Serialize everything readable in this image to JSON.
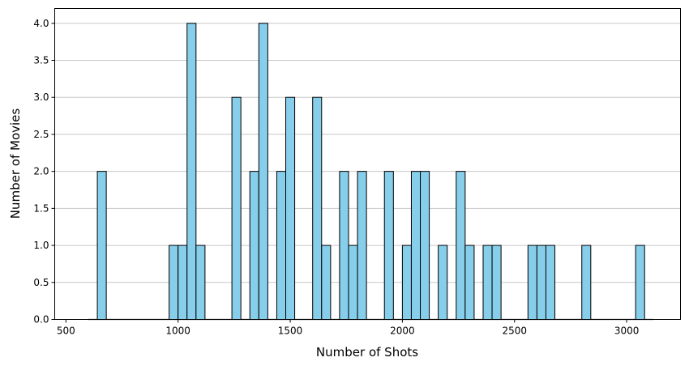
{
  "chart_data": {
    "type": "bar",
    "title": "",
    "xlabel": "Number of Shots",
    "ylabel": "Number of Movies",
    "xlim": [
      450,
      3240
    ],
    "ylim": [
      0,
      4.2
    ],
    "bin_width": 40,
    "bar_color": "#87ceeb",
    "edge_color": "#000000",
    "grid": "y-axis only",
    "x_ticks": [
      500,
      1000,
      1500,
      2000,
      2500,
      3000
    ],
    "x_tick_labels": [
      "500",
      "1000",
      "1500",
      "2000",
      "2500",
      "3000"
    ],
    "y_ticks": [
      0.0,
      0.5,
      1.0,
      1.5,
      2.0,
      2.5,
      3.0,
      3.5,
      4.0
    ],
    "y_tick_labels": [
      "0.0",
      "0.5",
      "1.0",
      "1.5",
      "2.0",
      "2.5",
      "3.0",
      "3.5",
      "4.0"
    ],
    "bins": [
      {
        "x": 620,
        "count": 0
      },
      {
        "x": 660,
        "count": 2
      },
      {
        "x": 700,
        "count": 0
      },
      {
        "x": 740,
        "count": 0
      },
      {
        "x": 780,
        "count": 0
      },
      {
        "x": 820,
        "count": 0
      },
      {
        "x": 860,
        "count": 0
      },
      {
        "x": 900,
        "count": 0
      },
      {
        "x": 940,
        "count": 0
      },
      {
        "x": 980,
        "count": 1
      },
      {
        "x": 1020,
        "count": 1
      },
      {
        "x": 1060,
        "count": 4
      },
      {
        "x": 1100,
        "count": 1
      },
      {
        "x": 1140,
        "count": 0
      },
      {
        "x": 1180,
        "count": 0
      },
      {
        "x": 1220,
        "count": 0
      },
      {
        "x": 1260,
        "count": 3
      },
      {
        "x": 1300,
        "count": 0
      },
      {
        "x": 1340,
        "count": 2
      },
      {
        "x": 1380,
        "count": 4
      },
      {
        "x": 1420,
        "count": 0
      },
      {
        "x": 1460,
        "count": 2
      },
      {
        "x": 1500,
        "count": 3
      },
      {
        "x": 1540,
        "count": 0
      },
      {
        "x": 1580,
        "count": 0
      },
      {
        "x": 1620,
        "count": 3
      },
      {
        "x": 1660,
        "count": 1
      },
      {
        "x": 1700,
        "count": 0
      },
      {
        "x": 1740,
        "count": 2
      },
      {
        "x": 1780,
        "count": 1
      },
      {
        "x": 1820,
        "count": 2
      },
      {
        "x": 1860,
        "count": 0
      },
      {
        "x": 1900,
        "count": 0
      },
      {
        "x": 1940,
        "count": 2
      },
      {
        "x": 1980,
        "count": 0
      },
      {
        "x": 2020,
        "count": 1
      },
      {
        "x": 2060,
        "count": 2
      },
      {
        "x": 2100,
        "count": 2
      },
      {
        "x": 2140,
        "count": 0
      },
      {
        "x": 2180,
        "count": 1
      },
      {
        "x": 2220,
        "count": 0
      },
      {
        "x": 2260,
        "count": 2
      },
      {
        "x": 2300,
        "count": 1
      },
      {
        "x": 2340,
        "count": 0
      },
      {
        "x": 2380,
        "count": 1
      },
      {
        "x": 2420,
        "count": 1
      },
      {
        "x": 2460,
        "count": 0
      },
      {
        "x": 2500,
        "count": 0
      },
      {
        "x": 2540,
        "count": 0
      },
      {
        "x": 2580,
        "count": 1
      },
      {
        "x": 2620,
        "count": 1
      },
      {
        "x": 2660,
        "count": 1
      },
      {
        "x": 2700,
        "count": 0
      },
      {
        "x": 2740,
        "count": 0
      },
      {
        "x": 2780,
        "count": 0
      },
      {
        "x": 2820,
        "count": 1
      },
      {
        "x": 2860,
        "count": 0
      },
      {
        "x": 2900,
        "count": 0
      },
      {
        "x": 2940,
        "count": 0
      },
      {
        "x": 2980,
        "count": 0
      },
      {
        "x": 3020,
        "count": 0
      },
      {
        "x": 3060,
        "count": 1
      },
      {
        "x": 3100,
        "count": 0
      }
    ]
  }
}
